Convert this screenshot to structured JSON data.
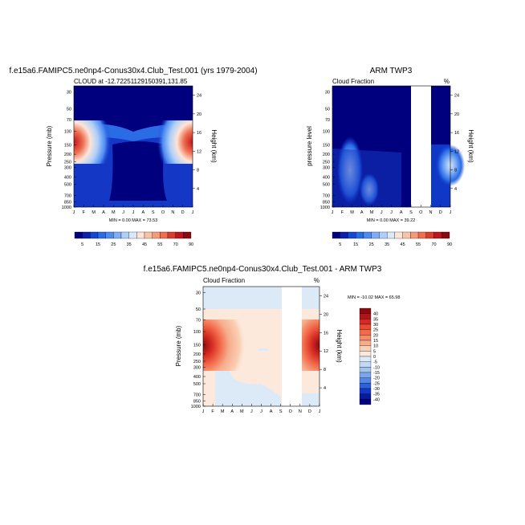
{
  "chart_data": [
    {
      "type": "heatmap",
      "title": "f.e15a6.FAMIPC5.ne0np4-Conus30x4.Club_Test.001 (yrs 1979-2004)",
      "subtitle_left": "CLOUD at -12.72251129150391,131.85",
      "subtitle_right": "",
      "ylabel_left": "Pressure (mb)",
      "ylabel_right": "Height (km)",
      "xticks": [
        "J",
        "F",
        "M",
        "A",
        "M",
        "J",
        "J",
        "A",
        "S",
        "O",
        "N",
        "D",
        "J"
      ],
      "yticks_pressure": [
        "30",
        "50",
        "70",
        "100",
        "150",
        "200",
        "250",
        "300",
        "400",
        "500",
        "700",
        "850",
        "1000"
      ],
      "yticks_height": [
        "24",
        "20",
        "16",
        "12",
        "8",
        "4"
      ],
      "stats": "MIN =  0.00 MAX =  73.53",
      "min": 0.0,
      "max": 73.53
    },
    {
      "type": "heatmap",
      "title": "ARM TWP3",
      "subtitle_left": "Cloud Fraction",
      "subtitle_right": "%",
      "ylabel_left": "pressure level",
      "ylabel_right": "Height (km)",
      "xticks": [
        "J",
        "F",
        "M",
        "A",
        "M",
        "J",
        "J",
        "A",
        "S",
        "O",
        "N",
        "D",
        "J"
      ],
      "yticks_pressure": [
        "30",
        "50",
        "70",
        "100",
        "150",
        "200",
        "250",
        "300",
        "400",
        "500",
        "700",
        "850",
        "1000"
      ],
      "yticks_height": [
        "24",
        "20",
        "16",
        "12",
        "8",
        "4"
      ],
      "stats": "MIN =  0.00 MAX =  39.22",
      "min": 0.0,
      "max": 39.22,
      "missing_months": [
        "O"
      ]
    },
    {
      "type": "heatmap",
      "title": "f.e15a6.FAMIPC5.ne0np4-Conus30x4.Club_Test.001 - ARM TWP3",
      "subtitle_left": "Cloud Fraction",
      "subtitle_right": "%",
      "ylabel_left": "Pressure (mb)",
      "ylabel_right": "Height (km)",
      "xticks": [
        "J",
        "F",
        "M",
        "A",
        "M",
        "J",
        "J",
        "A",
        "S",
        "O",
        "N",
        "D",
        "J"
      ],
      "yticks_pressure": [
        "30",
        "50",
        "70",
        "100",
        "150",
        "200",
        "250",
        "300",
        "400",
        "500",
        "700",
        "850",
        "1000"
      ],
      "yticks_height": [
        "24",
        "20",
        "16",
        "12",
        "8",
        "4"
      ],
      "stats": "MIN = -10.02 MAX =  65.98",
      "min": -10.02,
      "max": 65.98,
      "missing_months": [
        "O"
      ]
    }
  ],
  "colorbar_abs": {
    "labels": [
      "5",
      "15",
      "25",
      "35",
      "45",
      "55",
      "70",
      "90"
    ],
    "colors": [
      "#00007f",
      "#0a1eb0",
      "#1446d8",
      "#2a6be6",
      "#4d8bf0",
      "#7eadf5",
      "#aecff9",
      "#d9e8fb",
      "#fce5d8",
      "#f9c3a8",
      "#f59b78",
      "#ee6e4f",
      "#dd3b2c",
      "#c0141c",
      "#8a0a10"
    ]
  },
  "colorbar_diff": {
    "labels": [
      "40",
      "35",
      "30",
      "25",
      "20",
      "15",
      "10",
      "5",
      "0",
      "-5",
      "-10",
      "-15",
      "-20",
      "-25",
      "-30",
      "-35",
      "-40"
    ],
    "colors": [
      "#8a0a10",
      "#b5121a",
      "#d42a22",
      "#e84a33",
      "#f26a4a",
      "#f58b68",
      "#f7ad8c",
      "#fad0b5",
      "#fde9dc",
      "#dceaf8",
      "#c1d9f5",
      "#a3c3ef",
      "#7ea6ea",
      "#5587e4",
      "#2d62da",
      "#1438c5",
      "#0a1aa0",
      "#00007f"
    ]
  }
}
